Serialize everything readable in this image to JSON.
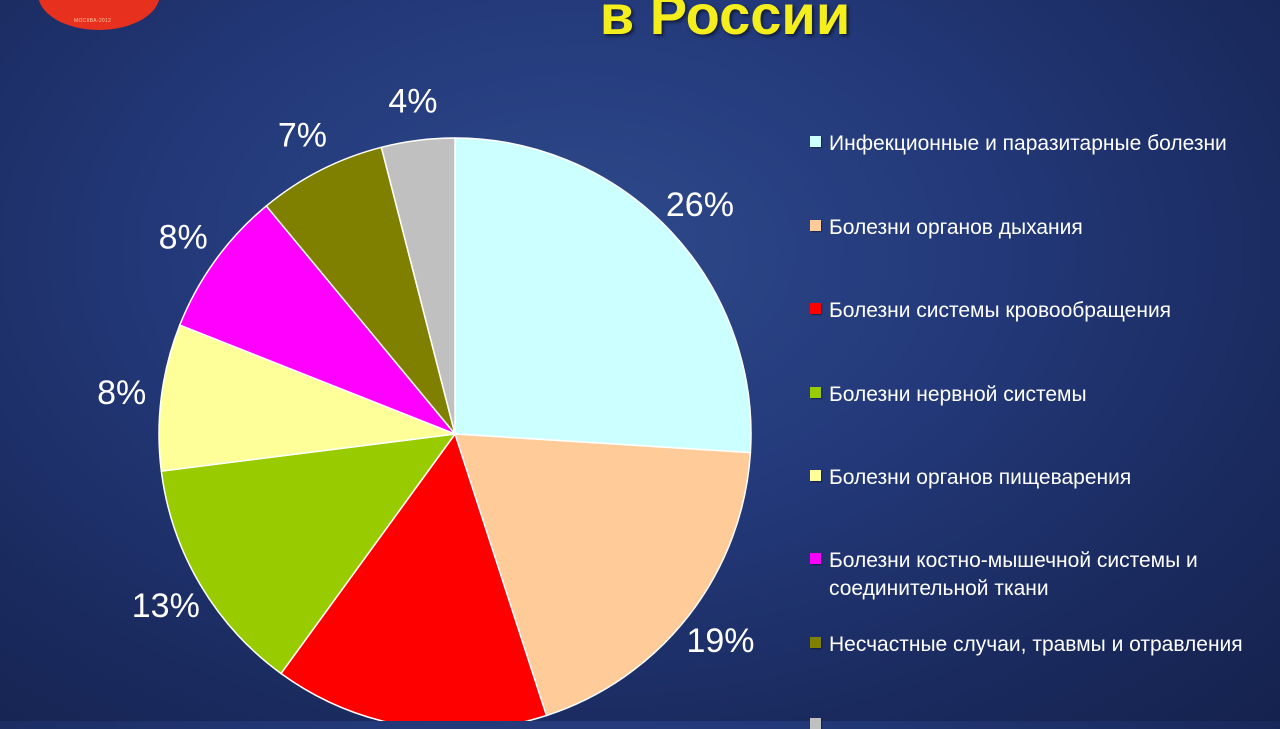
{
  "header": {
    "title": "в России",
    "logo_text": "МОСКВА-2012"
  },
  "chart_data": {
    "type": "pie",
    "values": [
      26,
      19,
      15,
      13,
      8,
      8,
      7,
      4
    ],
    "labels": [
      "26%",
      "19%",
      "",
      "13%",
      "8%",
      "8%",
      "7%",
      "4%"
    ],
    "colors": [
      "#ccffff",
      "#ffcc99",
      "#ff0000",
      "#99cc00",
      "#ffff99",
      "#ff00ff",
      "#808000",
      "#c0c0c0"
    ],
    "legend": {
      "position": "right",
      "entries": [
        "Инфекционные и паразитарные болезни",
        "Болезни органов дыхания",
        "Болезни системы кровообращения",
        "Болезни нервной системы",
        "Болезни органов пищеварения",
        "Болезни костно-мышечной системы и соединительной ткани",
        "Несчастные случаи, травмы и отравления",
        ""
      ]
    }
  }
}
